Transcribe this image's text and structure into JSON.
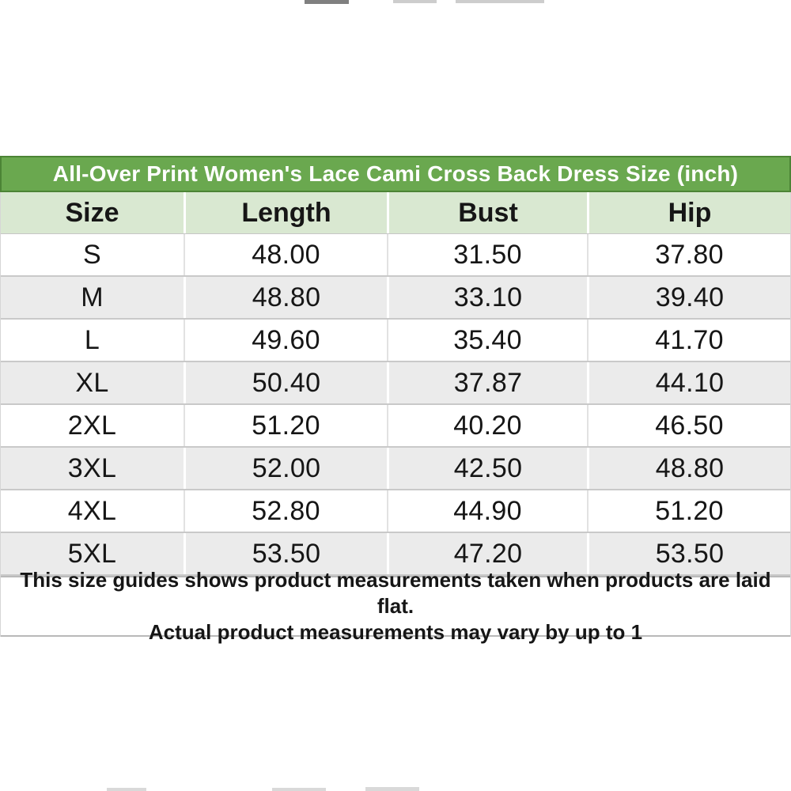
{
  "chart_data": {
    "type": "table",
    "title": "All-Over Print Women's Lace Cami Cross Back Dress Size (inch)",
    "columns": [
      "Size",
      "Length",
      "Bust",
      "Hip"
    ],
    "rows": [
      {
        "size": "S",
        "length": "48.00",
        "bust": "31.50",
        "hip": "37.80"
      },
      {
        "size": "M",
        "length": "48.80",
        "bust": "33.10",
        "hip": "39.40"
      },
      {
        "size": "L",
        "length": "49.60",
        "bust": "35.40",
        "hip": "41.70"
      },
      {
        "size": "XL",
        "length": "50.40",
        "bust": "37.87",
        "hip": "44.10"
      },
      {
        "size": "2XL",
        "length": "51.20",
        "bust": "40.20",
        "hip": "46.50"
      },
      {
        "size": "3XL",
        "length": "52.00",
        "bust": "42.50",
        "hip": "48.80"
      },
      {
        "size": "4XL",
        "length": "52.80",
        "bust": "44.90",
        "hip": "51.20"
      },
      {
        "size": "5XL",
        "length": "53.50",
        "bust": "47.20",
        "hip": "53.50"
      }
    ],
    "footer": {
      "line1": "This size guides shows product measurements taken when products are laid flat.",
      "line2": "Actual product measurements may vary by up to 1"
    },
    "layout_hints": {
      "legend_position": "none",
      "grid": "on",
      "row_striping": "white/gray alternating"
    }
  },
  "colors": {
    "title_bg": "#6aa84f",
    "title_border": "#4c8435",
    "title_text": "#ffffff",
    "header_bg": "#d9e8d1",
    "row_white_bg": "#ffffff",
    "row_gray_bg": "#ebebeb",
    "grid_line": "#c9c9c9",
    "text": "#161616"
  }
}
